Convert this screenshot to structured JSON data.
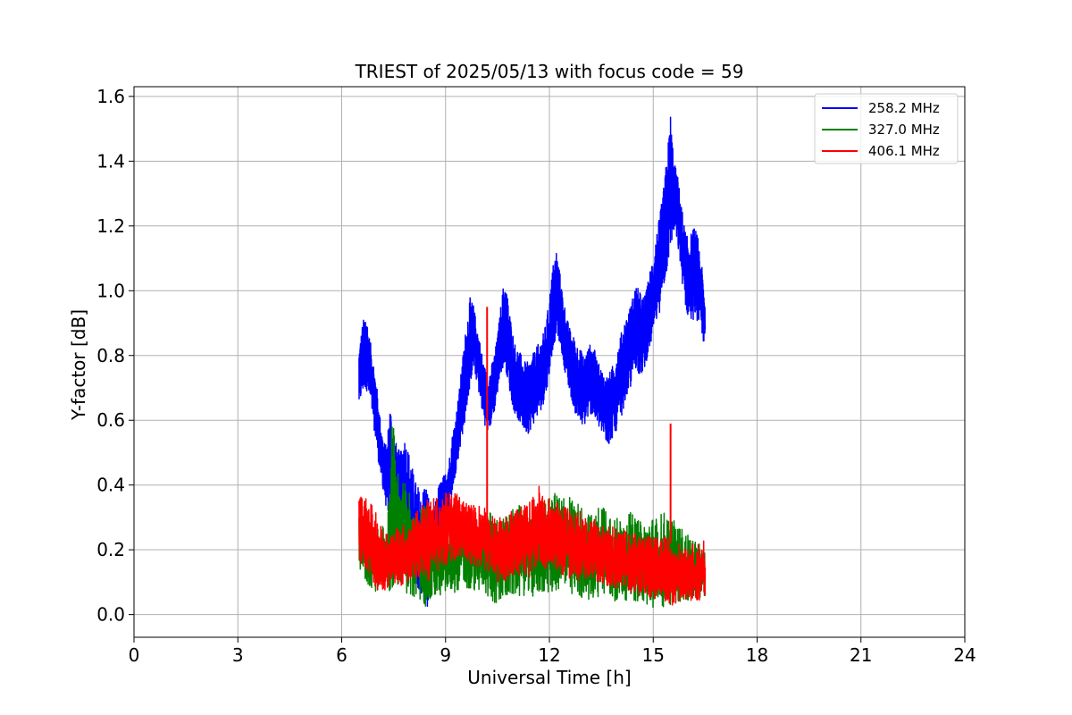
{
  "chart_data": {
    "type": "line",
    "title": "TRIEST of 2025/05/13 with focus code = 59",
    "xlabel": "Universal Time [h]",
    "ylabel": "Y-factor [dB]",
    "xlim": [
      0,
      24
    ],
    "ylim": [
      -0.07,
      1.63
    ],
    "xticks": [
      0,
      3,
      6,
      9,
      12,
      15,
      18,
      21,
      24
    ],
    "yticks": [
      0.0,
      0.2,
      0.4,
      0.6,
      0.8,
      1.0,
      1.2,
      1.4,
      1.6
    ],
    "ytick_labels": [
      "0.0",
      "0.2",
      "0.4",
      "0.6",
      "0.8",
      "1.0",
      "1.2",
      "1.4",
      "1.6"
    ],
    "grid": true,
    "legend_position": "top-right",
    "series": [
      {
        "name": "258.2 MHz",
        "color": "#0000ff",
        "x": [
          6.5,
          6.6,
          6.7,
          6.8,
          6.9,
          7.0,
          7.1,
          7.2,
          7.3,
          7.4,
          7.5,
          7.6,
          7.7,
          7.8,
          7.9,
          8.0,
          8.1,
          8.2,
          8.3,
          8.4,
          8.5,
          8.6,
          8.7,
          8.8,
          8.9,
          9.0,
          9.1,
          9.2,
          9.3,
          9.4,
          9.5,
          9.6,
          9.7,
          9.8,
          9.9,
          10.0,
          10.1,
          10.2,
          10.3,
          10.4,
          10.5,
          10.6,
          10.7,
          10.8,
          10.9,
          11.0,
          11.1,
          11.2,
          11.3,
          11.4,
          11.5,
          11.6,
          11.7,
          11.8,
          11.9,
          12.0,
          12.1,
          12.2,
          12.3,
          12.4,
          12.5,
          12.6,
          12.7,
          12.8,
          12.9,
          13.0,
          13.1,
          13.2,
          13.3,
          13.4,
          13.5,
          13.6,
          13.7,
          13.8,
          13.9,
          14.0,
          14.1,
          14.2,
          14.3,
          14.4,
          14.5,
          14.6,
          14.7,
          14.8,
          14.9,
          15.0,
          15.1,
          15.2,
          15.3,
          15.4,
          15.5,
          15.6,
          15.7,
          15.8,
          15.9,
          16.0,
          16.1,
          16.2,
          16.3,
          16.4,
          16.5
        ],
        "low": [
          0.64,
          0.68,
          0.7,
          0.66,
          0.6,
          0.52,
          0.44,
          0.38,
          0.32,
          0.3,
          0.28,
          0.26,
          0.24,
          0.22,
          0.2,
          0.16,
          0.1,
          0.08,
          0.06,
          0.03,
          0.02,
          0.16,
          0.22,
          0.24,
          0.26,
          0.28,
          0.32,
          0.38,
          0.44,
          0.5,
          0.56,
          0.62,
          0.7,
          0.76,
          0.72,
          0.66,
          0.6,
          0.56,
          0.58,
          0.62,
          0.68,
          0.74,
          0.78,
          0.72,
          0.66,
          0.62,
          0.6,
          0.58,
          0.56,
          0.56,
          0.58,
          0.6,
          0.62,
          0.64,
          0.68,
          0.74,
          0.82,
          0.86,
          0.84,
          0.78,
          0.72,
          0.68,
          0.64,
          0.6,
          0.58,
          0.58,
          0.6,
          0.62,
          0.6,
          0.58,
          0.56,
          0.54,
          0.52,
          0.54,
          0.56,
          0.58,
          0.62,
          0.66,
          0.68,
          0.72,
          0.76,
          0.74,
          0.74,
          0.78,
          0.82,
          0.86,
          0.9,
          0.94,
          1.0,
          1.06,
          1.12,
          1.18,
          1.14,
          1.06,
          0.96,
          0.92,
          0.9,
          0.92,
          0.9,
          0.86,
          0.82
        ],
        "high": [
          0.82,
          0.9,
          0.94,
          0.86,
          0.8,
          0.72,
          0.62,
          0.54,
          0.52,
          0.66,
          0.56,
          0.52,
          0.5,
          0.56,
          0.52,
          0.48,
          0.42,
          0.4,
          0.36,
          0.42,
          0.38,
          0.3,
          0.34,
          0.4,
          0.42,
          0.44,
          0.48,
          0.56,
          0.62,
          0.7,
          0.8,
          0.9,
          0.98,
          0.96,
          0.9,
          0.84,
          0.78,
          0.74,
          0.76,
          0.8,
          0.86,
          0.96,
          1.04,
          0.98,
          0.9,
          0.84,
          0.82,
          0.8,
          0.78,
          0.78,
          0.8,
          0.82,
          0.84,
          0.86,
          0.9,
          0.98,
          1.08,
          1.13,
          1.06,
          0.98,
          0.92,
          0.88,
          0.86,
          0.84,
          0.82,
          0.8,
          0.82,
          0.84,
          0.82,
          0.78,
          0.76,
          0.74,
          0.74,
          0.76,
          0.8,
          0.84,
          0.88,
          0.92,
          0.94,
          0.98,
          1.02,
          1.0,
          0.98,
          1.0,
          1.06,
          1.12,
          1.18,
          1.24,
          1.32,
          1.42,
          1.55,
          1.4,
          1.36,
          1.28,
          1.2,
          1.16,
          1.18,
          1.2,
          1.16,
          1.08,
          0.96
        ]
      },
      {
        "name": "327.0 MHz",
        "color": "#008000",
        "x": [
          6.5,
          6.7,
          6.9,
          7.1,
          7.3,
          7.5,
          7.7,
          7.9,
          8.1,
          8.3,
          8.5,
          8.7,
          8.9,
          9.1,
          9.3,
          9.5,
          9.7,
          9.9,
          10.1,
          10.3,
          10.5,
          10.7,
          10.9,
          11.1,
          11.3,
          11.5,
          11.7,
          11.9,
          12.1,
          12.3,
          12.5,
          12.7,
          12.9,
          13.1,
          13.3,
          13.5,
          13.7,
          13.9,
          14.1,
          14.3,
          14.5,
          14.7,
          14.9,
          15.1,
          15.3,
          15.5,
          15.7,
          15.9,
          16.1,
          16.3,
          16.5
        ],
        "low": [
          0.12,
          0.1,
          0.08,
          0.06,
          0.05,
          0.08,
          0.1,
          0.06,
          0.04,
          0.03,
          0.02,
          0.05,
          0.06,
          0.06,
          0.07,
          0.08,
          0.06,
          0.08,
          0.06,
          0.04,
          0.03,
          0.04,
          0.06,
          0.05,
          0.06,
          0.05,
          0.06,
          0.07,
          0.06,
          0.08,
          0.06,
          0.04,
          0.05,
          0.04,
          0.05,
          0.06,
          0.04,
          0.03,
          0.05,
          0.04,
          0.04,
          0.03,
          0.02,
          0.01,
          0.02,
          0.03,
          0.04,
          0.03,
          0.04,
          0.04,
          0.05
        ],
        "high": [
          0.34,
          0.3,
          0.28,
          0.26,
          0.3,
          0.58,
          0.4,
          0.42,
          0.3,
          0.34,
          0.36,
          0.28,
          0.26,
          0.3,
          0.32,
          0.34,
          0.3,
          0.28,
          0.3,
          0.32,
          0.3,
          0.3,
          0.32,
          0.34,
          0.32,
          0.3,
          0.34,
          0.36,
          0.38,
          0.36,
          0.38,
          0.36,
          0.34,
          0.32,
          0.3,
          0.36,
          0.34,
          0.3,
          0.3,
          0.32,
          0.3,
          0.28,
          0.3,
          0.3,
          0.32,
          0.3,
          0.28,
          0.26,
          0.24,
          0.22,
          0.2
        ]
      },
      {
        "name": "406.1 MHz",
        "color": "#ff0000",
        "x": [
          6.5,
          6.7,
          6.9,
          7.1,
          7.3,
          7.5,
          7.7,
          7.9,
          8.1,
          8.3,
          8.5,
          8.7,
          8.9,
          9.1,
          9.3,
          9.5,
          9.7,
          9.9,
          10.1,
          10.3,
          10.5,
          10.7,
          10.9,
          11.1,
          11.3,
          11.5,
          11.7,
          11.9,
          12.1,
          12.3,
          12.5,
          12.7,
          12.9,
          13.1,
          13.3,
          13.5,
          13.7,
          13.9,
          14.1,
          14.3,
          14.5,
          14.7,
          14.9,
          15.1,
          15.3,
          15.5,
          15.7,
          15.9,
          16.1,
          16.3,
          16.5
        ],
        "low": [
          0.16,
          0.14,
          0.1,
          0.06,
          0.08,
          0.1,
          0.09,
          0.08,
          0.1,
          0.12,
          0.1,
          0.12,
          0.14,
          0.16,
          0.16,
          0.18,
          0.16,
          0.14,
          0.14,
          0.12,
          0.1,
          0.1,
          0.12,
          0.12,
          0.1,
          0.12,
          0.16,
          0.14,
          0.14,
          0.12,
          0.12,
          0.1,
          0.1,
          0.1,
          0.1,
          0.1,
          0.08,
          0.08,
          0.07,
          0.07,
          0.06,
          0.06,
          0.05,
          0.05,
          0.04,
          0.02,
          0.04,
          0.04,
          0.04,
          0.04,
          0.05
        ],
        "high": [
          0.37,
          0.36,
          0.34,
          0.28,
          0.26,
          0.26,
          0.28,
          0.28,
          0.32,
          0.34,
          0.36,
          0.36,
          0.37,
          0.38,
          0.38,
          0.36,
          0.34,
          0.34,
          0.34,
          0.32,
          0.3,
          0.3,
          0.32,
          0.34,
          0.34,
          0.36,
          0.4,
          0.36,
          0.36,
          0.34,
          0.34,
          0.32,
          0.32,
          0.3,
          0.3,
          0.28,
          0.28,
          0.27,
          0.26,
          0.26,
          0.25,
          0.25,
          0.24,
          0.24,
          0.24,
          0.24,
          0.22,
          0.22,
          0.22,
          0.22,
          0.24
        ]
      }
    ],
    "spikes": [
      {
        "series": "406.1 MHz",
        "x": 10.2,
        "y": 0.95
      },
      {
        "series": "406.1 MHz",
        "x": 15.5,
        "y": 0.59
      },
      {
        "series": "327.0 MHz",
        "x": 7.45,
        "y": 0.58
      }
    ]
  }
}
